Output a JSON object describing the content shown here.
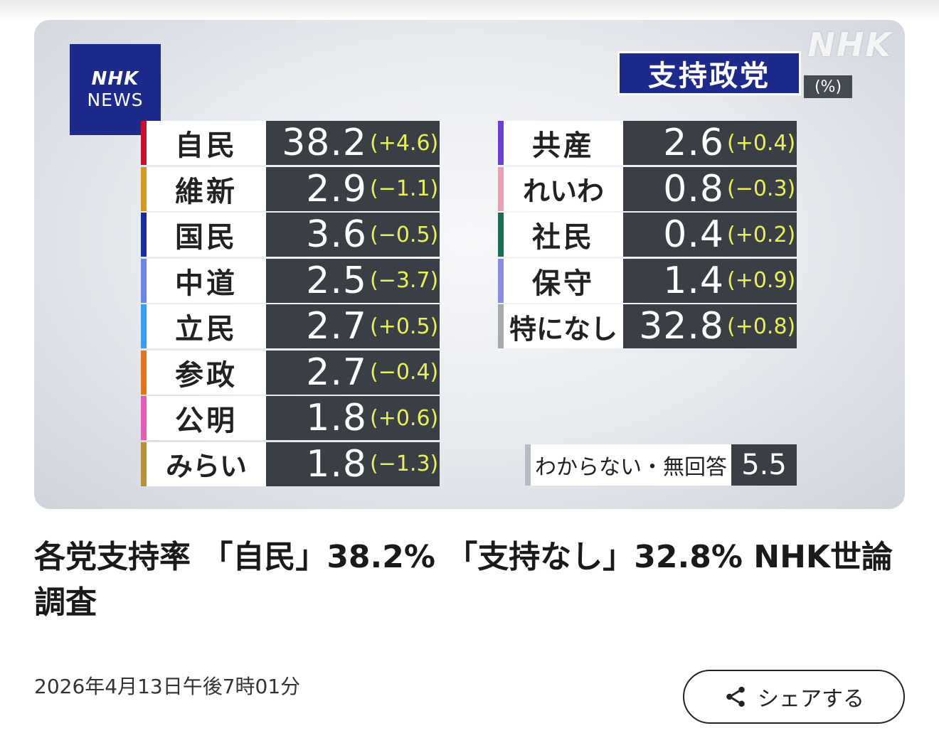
{
  "hero": {
    "watermark": "NHK",
    "logo": {
      "line1": "NHK",
      "line2": "NEWS"
    },
    "title": "支持政党",
    "unit": "(%)",
    "left_parties": [
      {
        "name": "自民",
        "value": "38.2",
        "change": "(+4.6)",
        "color": "#c8102e"
      },
      {
        "name": "維新",
        "value": "2.9",
        "change": "(−1.1)",
        "color": "#d49a1e"
      },
      {
        "name": "国民",
        "value": "3.6",
        "change": "(−0.5)",
        "color": "#1c2a9c"
      },
      {
        "name": "中道",
        "value": "2.5",
        "change": "(−3.7)",
        "color": "#6b86e6"
      },
      {
        "name": "立民",
        "value": "2.7",
        "change": "(+0.5)",
        "color": "#3a9ef0"
      },
      {
        "name": "参政",
        "value": "2.7",
        "change": "(−0.4)",
        "color": "#e3751c"
      },
      {
        "name": "公明",
        "value": "1.8",
        "change": "(+0.6)",
        "color": "#e35fb6"
      },
      {
        "name": "みらい",
        "value": "1.8",
        "change": "(−1.3)",
        "color": "#b8923a"
      }
    ],
    "right_parties": [
      {
        "name": "共産",
        "value": "2.6",
        "change": "(+0.4)",
        "color": "#6b3ed6"
      },
      {
        "name": "れいわ",
        "value": "0.8",
        "change": "(−0.3)",
        "color": "#e8a0b4"
      },
      {
        "name": "社民",
        "value": "0.4",
        "change": "(+0.2)",
        "color": "#1b6e55"
      },
      {
        "name": "保守",
        "value": "1.4",
        "change": "(+0.9)",
        "color": "#8c8ce0"
      },
      {
        "name": "特になし",
        "value": "32.8",
        "change": "(+0.8)",
        "color": "#a6a9ae"
      }
    ],
    "unknown": {
      "label": "わからない・無回答",
      "value": "5.5"
    }
  },
  "article": {
    "headline": "各党支持率 「自民」38.2% 「支持なし」32.8% NHK世論調査",
    "timestamp": "2026年4月13日午後7時01分",
    "share_label": "シェアする"
  }
}
